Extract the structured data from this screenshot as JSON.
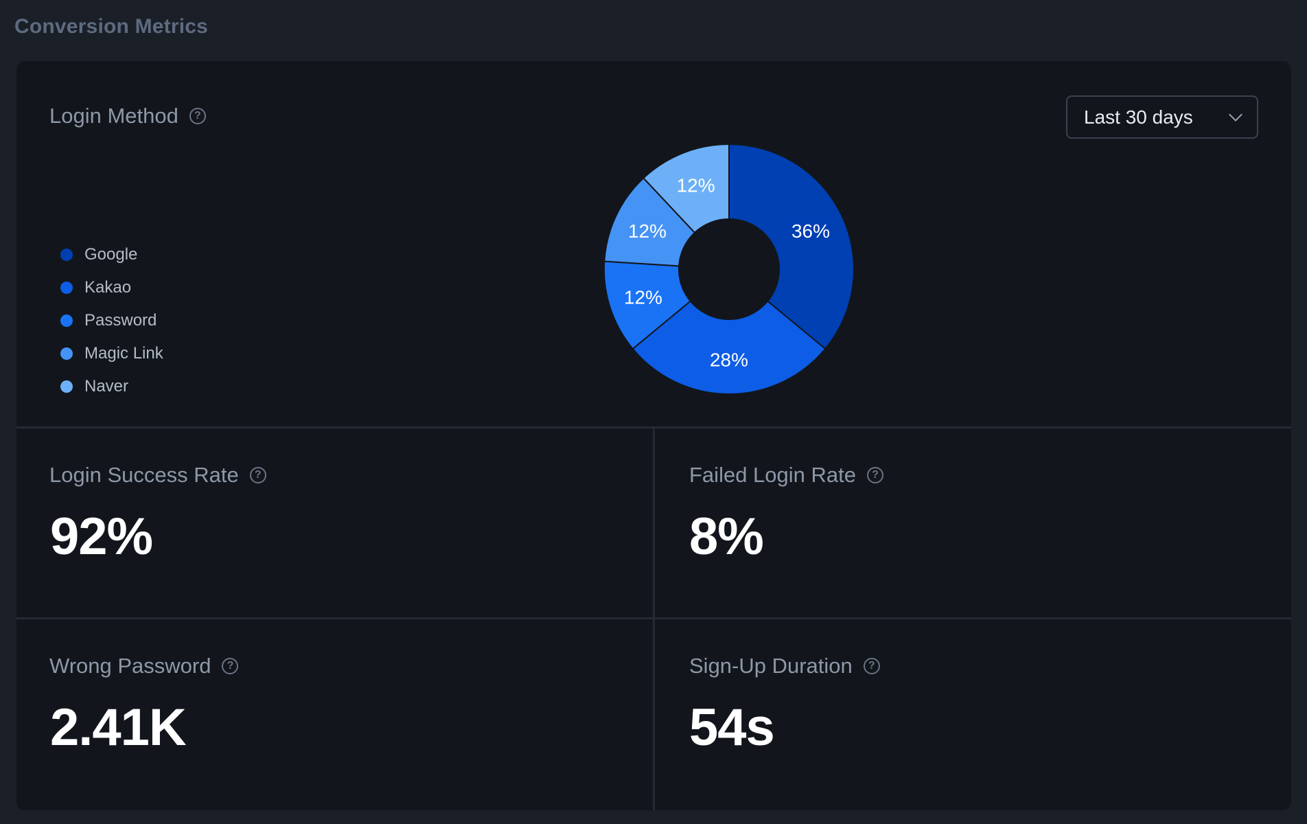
{
  "section_title": "Conversion Metrics",
  "login_method": {
    "title": "Login Method",
    "dropdown": {
      "selected": "Last 30 days"
    }
  },
  "chart_data": {
    "type": "pie",
    "categories": [
      "Google",
      "Kakao",
      "Password",
      "Magic Link",
      "Naver"
    ],
    "values": [
      36,
      28,
      12,
      12,
      12
    ],
    "labels": [
      "36%",
      "28%",
      "12%",
      "12%",
      "12%"
    ],
    "colors": [
      "#0040b3",
      "#0d5de6",
      "#1a73f5",
      "#4593f5",
      "#6db0f7"
    ],
    "inner_hole": true,
    "legend_position": "left"
  },
  "stats": [
    {
      "title": "Login Success Rate",
      "value": "92%"
    },
    {
      "title": "Failed Login Rate",
      "value": "8%"
    },
    {
      "title": "Wrong Password",
      "value": "2.41K"
    },
    {
      "title": "Sign-Up Duration",
      "value": "54s"
    }
  ],
  "icons": {
    "help": "question-circle-icon",
    "dropdown": "chevron-down-icon"
  }
}
